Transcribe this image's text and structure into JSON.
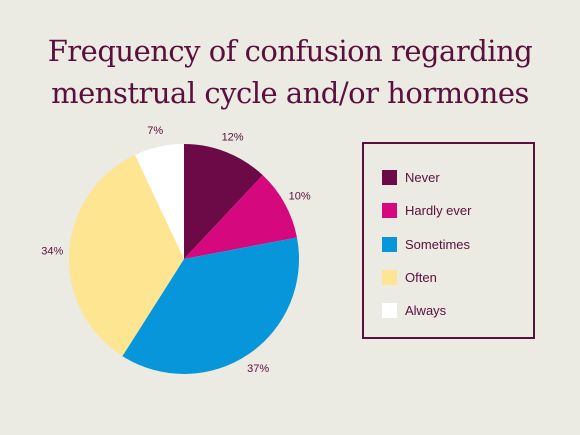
{
  "title_lines": [
    "Frequency of confusion regarding",
    "menstrual cycle and/or hormones"
  ],
  "chart_data": {
    "type": "pie",
    "title": "Frequency of confusion regarding menstrual cycle and/or hormones",
    "legend_position": "right",
    "slices": [
      {
        "label": "Never",
        "value": 12,
        "display": "12%",
        "color": "#6b0a47"
      },
      {
        "label": "Hardly ever",
        "value": 10,
        "display": "10%",
        "color": "#d6087e"
      },
      {
        "label": "Sometimes",
        "value": 37,
        "display": "37%",
        "color": "#0896db"
      },
      {
        "label": "Often",
        "value": 34,
        "display": "34%",
        "color": "#fde592"
      },
      {
        "label": "Always",
        "value": 7,
        "display": "7%",
        "color": "#ffffff"
      }
    ]
  }
}
